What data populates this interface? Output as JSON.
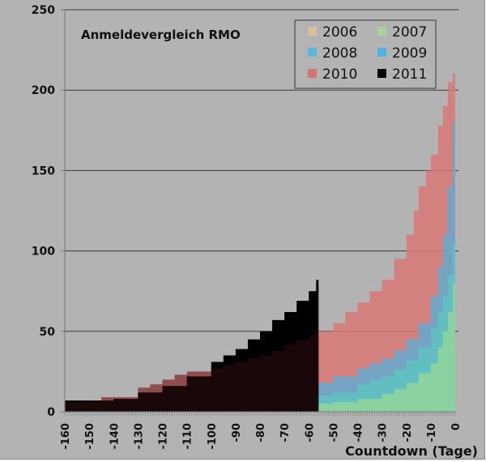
{
  "chart_data": {
    "type": "area",
    "title": "Anmeldevergleich RMO",
    "xlabel": "Countdown (Tage)",
    "ylabel": "",
    "xlim": [
      -160,
      0
    ],
    "ylim": [
      0,
      250
    ],
    "x_ticks": [
      "-160",
      "-150",
      "-140",
      "-130",
      "-120",
      "-110",
      "-100",
      "-90",
      "-80",
      "-70",
      "-60",
      "-50",
      "-40",
      "-30",
      "-20",
      "-10",
      "0"
    ],
    "y_ticks": [
      "0",
      "50",
      "100",
      "150",
      "200",
      "250"
    ],
    "grid": "horizontal",
    "legend_position": "top-right",
    "series": [
      {
        "name": "2006",
        "color": "#d8c29a",
        "x": [
          -160,
          0
        ],
        "values": [
          0,
          0
        ]
      },
      {
        "name": "2007",
        "color": "#8fd49c",
        "x": [
          -160,
          -140,
          -120,
          -100,
          -90,
          -80,
          -70,
          -60,
          -50,
          -40,
          -30,
          -25,
          -20,
          -15,
          -10,
          -7,
          -5,
          -3,
          -1,
          0
        ],
        "values": [
          0,
          0,
          0,
          1,
          2,
          3,
          4,
          5,
          6,
          8,
          11,
          14,
          18,
          24,
          30,
          40,
          50,
          62,
          80,
          120
        ]
      },
      {
        "name": "2008",
        "color": "#5cc8c0",
        "x": [
          -160,
          -140,
          -120,
          -100,
          -90,
          -80,
          -70,
          -60,
          -50,
          -40,
          -35,
          -30,
          -25,
          -20,
          -15,
          -10,
          -7,
          -5,
          -3,
          -1,
          0
        ],
        "values": [
          2,
          2,
          3,
          5,
          7,
          8,
          9,
          10,
          12,
          17,
          20,
          22,
          26,
          32,
          40,
          52,
          62,
          72,
          85,
          105,
          130
        ]
      },
      {
        "name": "2009",
        "color": "#4db3e0",
        "x": [
          -160,
          -140,
          -130,
          -120,
          -110,
          -100,
          -90,
          -80,
          -70,
          -60,
          -50,
          -40,
          -35,
          -30,
          -25,
          -20,
          -15,
          -10,
          -7,
          -5,
          -3,
          -1,
          0
        ],
        "values": [
          3,
          3,
          5,
          5,
          7,
          8,
          12,
          14,
          16,
          18,
          22,
          27,
          30,
          33,
          38,
          45,
          55,
          72,
          90,
          110,
          140,
          180,
          200
        ]
      },
      {
        "name": "2010",
        "color": "#d77876",
        "x": [
          -160,
          -150,
          -145,
          -140,
          -130,
          -125,
          -120,
          -115,
          -110,
          -100,
          -95,
          -90,
          -85,
          -80,
          -75,
          -70,
          -65,
          -60,
          -56,
          -50,
          -45,
          -40,
          -35,
          -30,
          -25,
          -20,
          -17,
          -15,
          -12,
          -10,
          -7,
          -5,
          -3,
          -1,
          0
        ],
        "values": [
          6,
          6,
          9,
          9,
          15,
          17,
          20,
          23,
          25,
          27,
          29,
          31,
          33,
          35,
          38,
          42,
          45,
          48,
          50,
          55,
          62,
          68,
          75,
          82,
          95,
          110,
          125,
          140,
          150,
          160,
          178,
          190,
          205,
          210,
          213
        ]
      },
      {
        "name": "2011",
        "color": "#000000",
        "x": [
          -160,
          -150,
          -140,
          -130,
          -120,
          -110,
          -100,
          -95,
          -90,
          -85,
          -80,
          -75,
          -70,
          -65,
          -60,
          -57,
          -56
        ],
        "values": [
          7,
          7,
          8,
          12,
          16,
          22,
          31,
          35,
          39,
          45,
          50,
          57,
          62,
          69,
          75,
          82,
          88
        ]
      }
    ]
  },
  "legend": {
    "items": [
      {
        "label": "2006",
        "color": "#d8c29a"
      },
      {
        "label": "2007",
        "color": "#a8d39a"
      },
      {
        "label": "2008",
        "color": "#5cb8d8"
      },
      {
        "label": "2009",
        "color": "#4cb4e0"
      },
      {
        "label": "2010",
        "color": "#d07776"
      },
      {
        "label": "2011",
        "color": "#000000"
      }
    ]
  }
}
